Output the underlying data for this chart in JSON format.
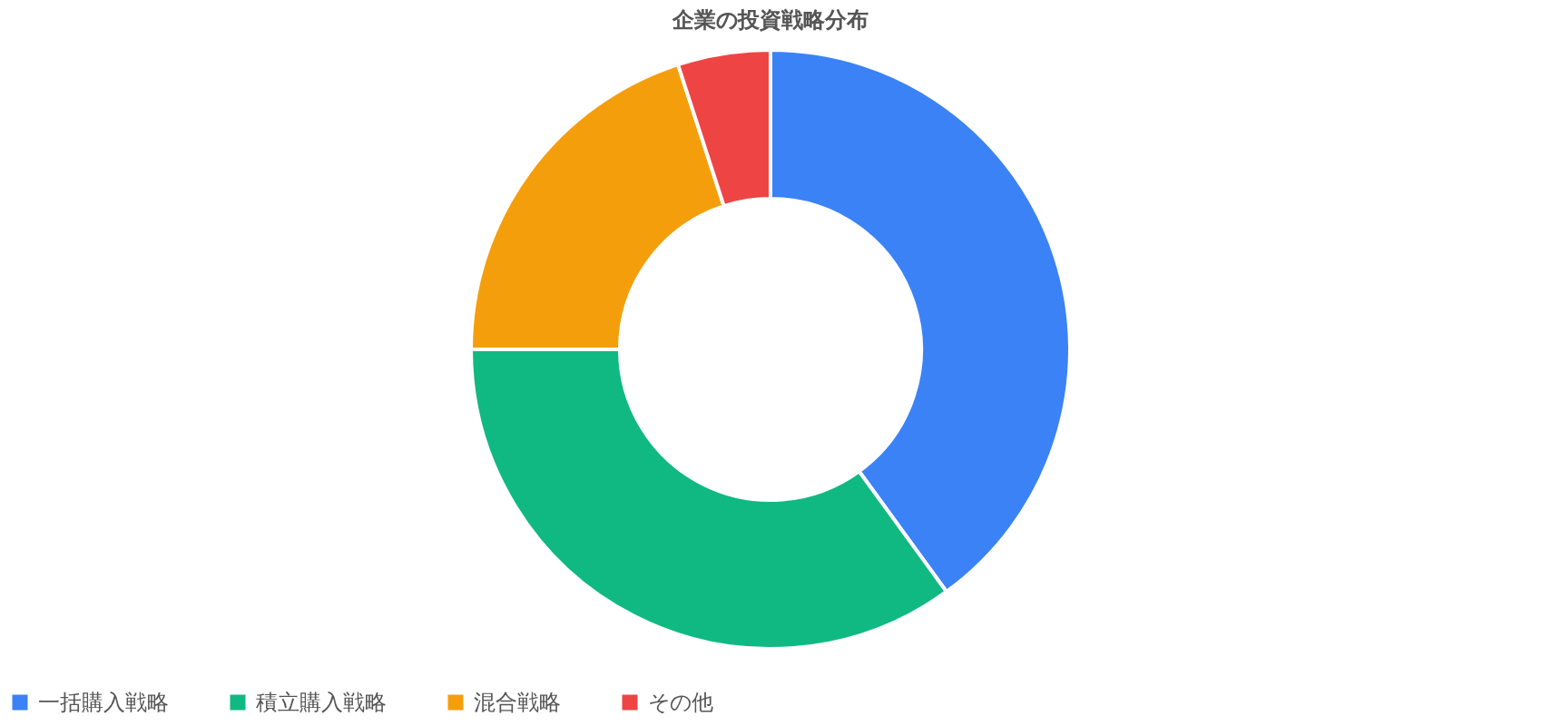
{
  "chart_data": {
    "type": "donut",
    "title": "企業の投資戦略分布",
    "categories": [
      "一括購入戦略",
      "積立購入戦略",
      "混合戦略",
      "その他"
    ],
    "values": [
      40,
      35,
      20,
      5
    ],
    "colors": [
      "#3b82f6",
      "#10b981",
      "#f59e0b",
      "#ef4444"
    ],
    "legend": "bottom"
  }
}
